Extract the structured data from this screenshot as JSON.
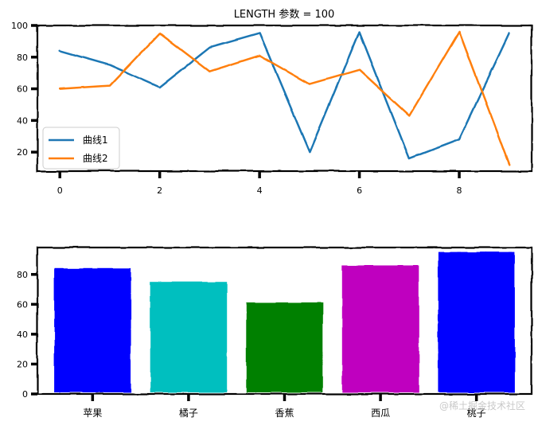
{
  "chart_data": [
    {
      "type": "line",
      "title": "LENGTH 参数 = 100",
      "xlabel": "",
      "ylabel": "",
      "x": [
        0,
        1,
        2,
        3,
        4,
        5,
        6,
        7,
        8,
        9
      ],
      "xlim": [
        -0.45,
        9.45
      ],
      "ylim": [
        8,
        100
      ],
      "xticks": [
        0,
        2,
        4,
        6,
        8
      ],
      "yticks": [
        20,
        40,
        60,
        80,
        100
      ],
      "legend_position": "lower-left",
      "series": [
        {
          "name": "曲线1",
          "color": "#1f77b4",
          "values": [
            84,
            75,
            61,
            86,
            95,
            20,
            96,
            16,
            28,
            95
          ]
        },
        {
          "name": "曲线2",
          "color": "#ff7f0e",
          "values": [
            60,
            62,
            95,
            71,
            81,
            63,
            72,
            43,
            96,
            12
          ]
        }
      ]
    },
    {
      "type": "bar",
      "title": "",
      "xlabel": "",
      "ylabel": "",
      "categories": [
        "苹果",
        "橘子",
        "香蕉",
        "西瓜",
        "桃子"
      ],
      "values": [
        84,
        75,
        61,
        86,
        95
      ],
      "colors": [
        "#0000ff",
        "#00bfbf",
        "#008000",
        "#bf00bf",
        "#0000ff"
      ],
      "ylim": [
        0,
        98
      ],
      "yticks": [
        0,
        20,
        40,
        60,
        80
      ]
    }
  ],
  "watermark": "@稀土掘金技术社区"
}
